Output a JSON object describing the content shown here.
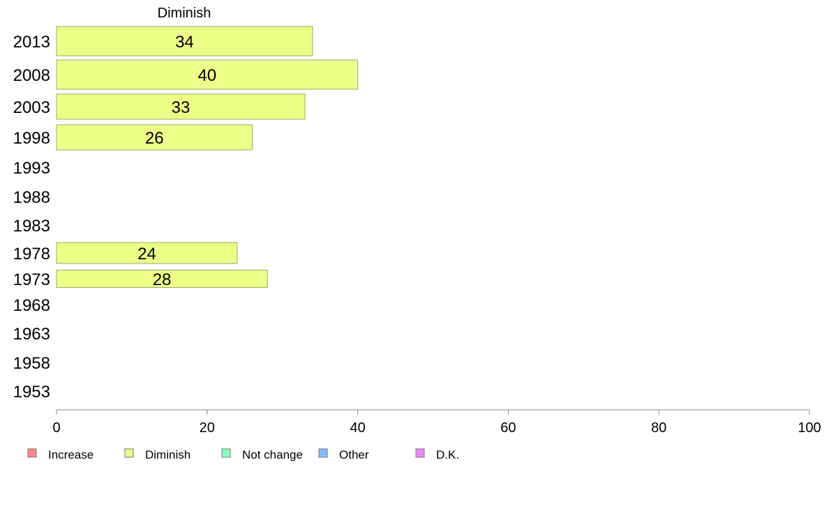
{
  "chart_data": {
    "type": "bar",
    "orientation": "horizontal",
    "title": "Diminish",
    "categories": [
      "2013",
      "2008",
      "2003",
      "1998",
      "1993",
      "1988",
      "1983",
      "1978",
      "1973",
      "1968",
      "1963",
      "1958",
      "1953"
    ],
    "series": [
      {
        "name": "Diminish",
        "color": "#eeff88",
        "values": [
          34,
          40,
          33,
          26,
          null,
          null,
          null,
          24,
          28,
          null,
          null,
          null,
          null
        ]
      }
    ],
    "data_labels": [
      "34",
      "40",
      "33",
      "26",
      "",
      "",
      "",
      "24",
      "28",
      "",
      "",
      "",
      ""
    ],
    "xlim": [
      0,
      100
    ],
    "xticks": [
      0,
      20,
      40,
      60,
      80,
      100
    ],
    "xtick_labels": [
      "0",
      "20",
      "40",
      "60",
      "80",
      "100"
    ],
    "xlabel": "",
    "ylabel": "",
    "grid": false,
    "legend": {
      "placement": "bottom",
      "items": [
        {
          "label": "Increase",
          "color": "#ff8888"
        },
        {
          "label": "Diminish",
          "color": "#eeff88"
        },
        {
          "label": "Not change",
          "color": "#88ffbb"
        },
        {
          "label": "Other",
          "color": "#88bbff"
        },
        {
          "label": "D.K.",
          "color": "#ee88ff"
        }
      ]
    }
  }
}
